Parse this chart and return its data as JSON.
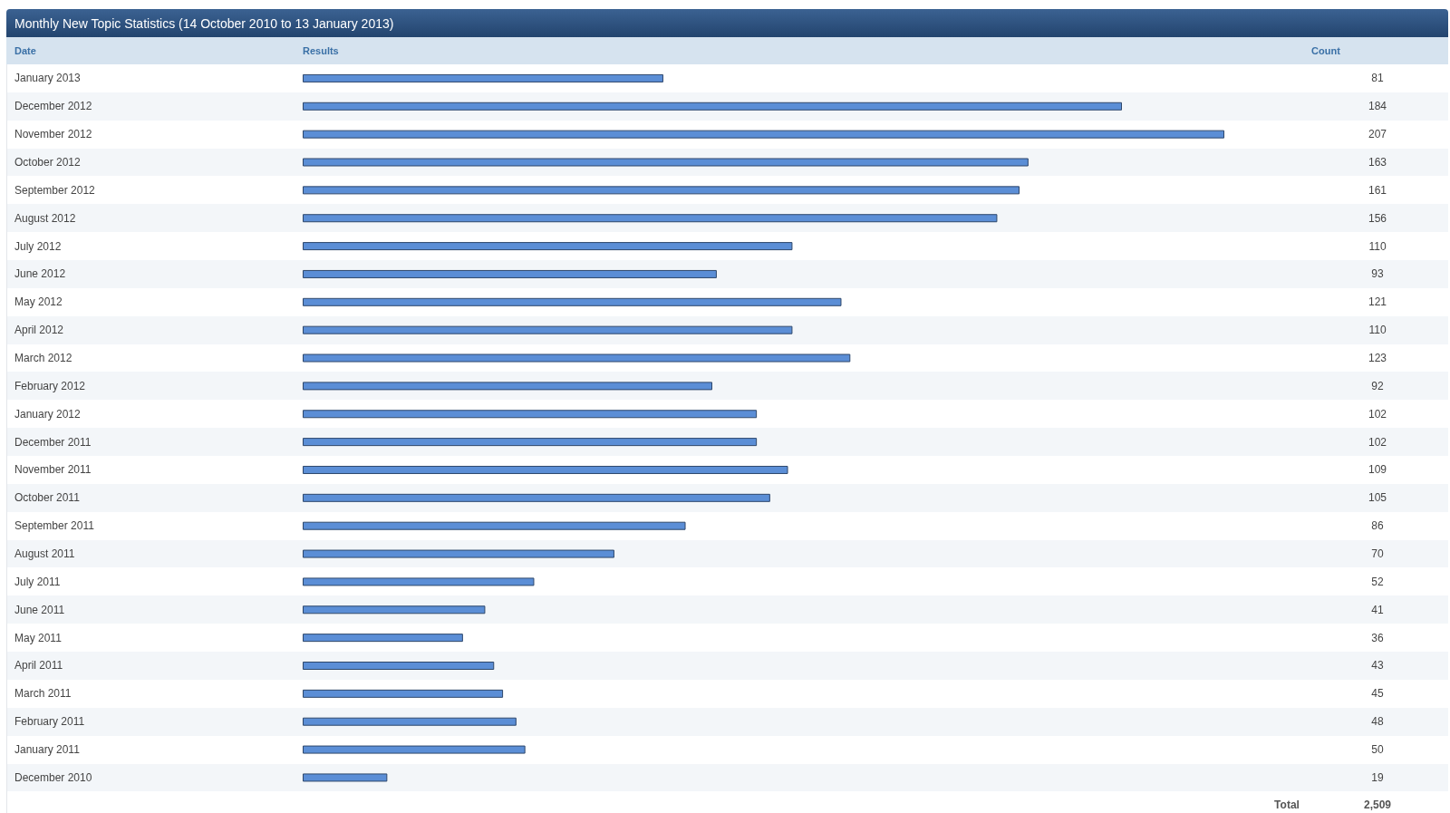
{
  "chart_data": {
    "type": "bar",
    "orientation": "horizontal",
    "title": "Monthly New Topic Statistics (14 October 2010 to 13 January 2013)",
    "ylabel": "Date",
    "xlabel": "Results",
    "categories": [
      "January 2013",
      "December 2012",
      "November 2012",
      "October 2012",
      "September 2012",
      "August 2012",
      "July 2012",
      "June 2012",
      "May 2012",
      "April 2012",
      "March 2012",
      "February 2012",
      "January 2012",
      "December 2011",
      "November 2011",
      "October 2011",
      "September 2011",
      "August 2011",
      "July 2011",
      "June 2011",
      "May 2011",
      "April 2011",
      "March 2011",
      "February 2011",
      "January 2011",
      "December 2010"
    ],
    "values": [
      81,
      184,
      207,
      163,
      161,
      156,
      110,
      93,
      121,
      110,
      123,
      92,
      102,
      102,
      109,
      105,
      86,
      70,
      52,
      41,
      36,
      43,
      45,
      48,
      50,
      19
    ],
    "color": "#5b8ed6",
    "data_labels": true,
    "tick_labels": "y",
    "annotations": [
      "Count",
      "Total",
      "2,509"
    ]
  }
}
